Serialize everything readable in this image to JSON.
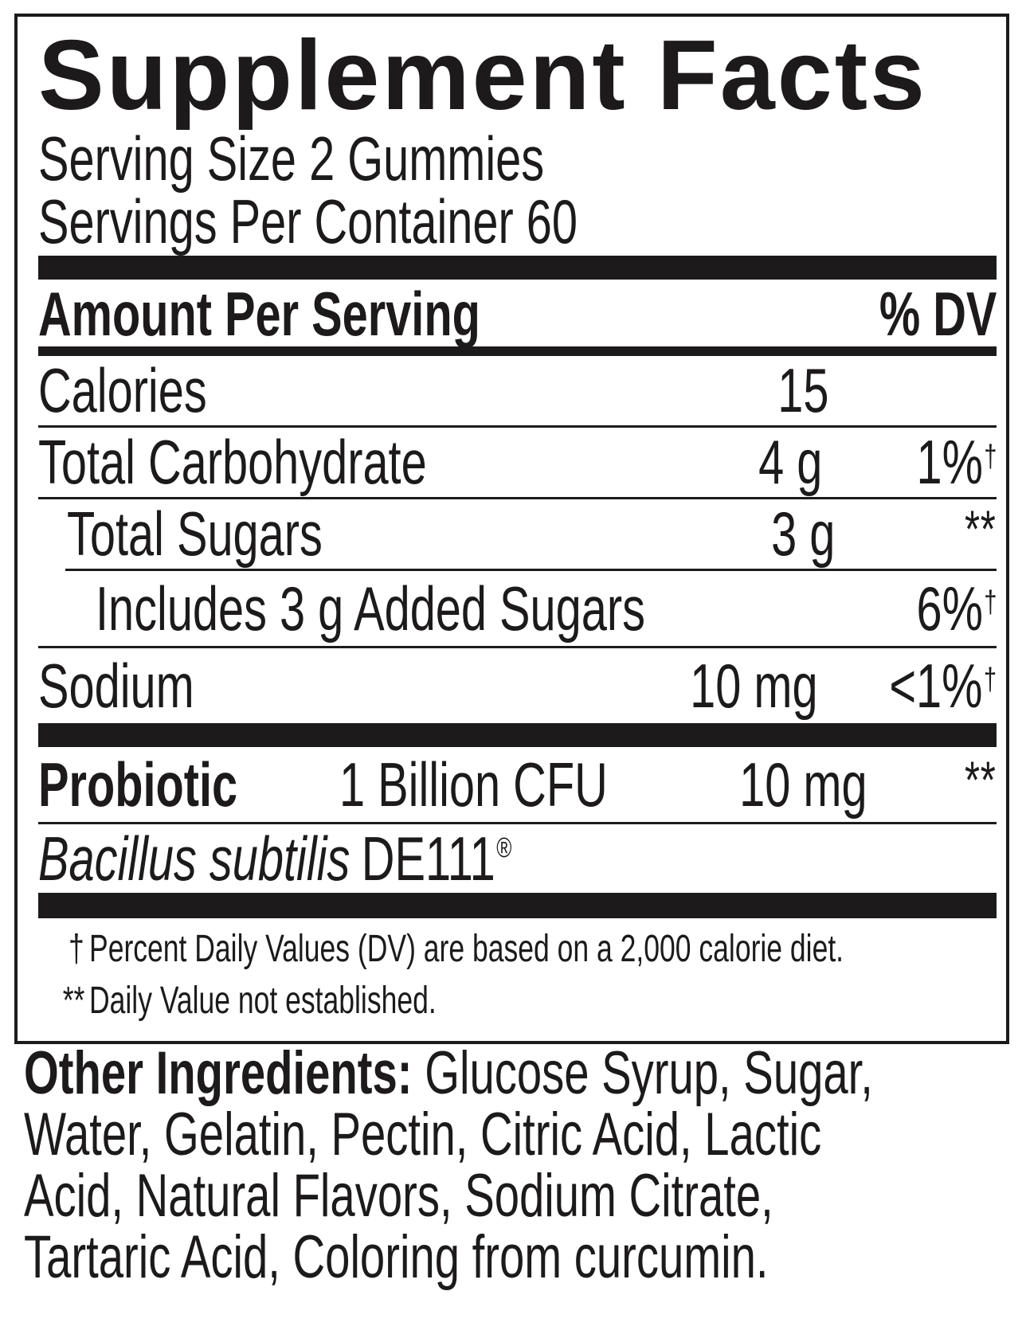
{
  "panel": {
    "title": "Supplement Facts",
    "serving_size": "Serving Size 2 Gummies",
    "servings_per_container": "Servings Per Container 60",
    "header": {
      "amount_label": "Amount Per Serving",
      "dv_label": "% DV"
    },
    "rows": [
      {
        "name": "Calories",
        "amount": "15",
        "dv": "",
        "dv_mark": ""
      },
      {
        "name": "Total Carbohydrate",
        "amount": "4 g",
        "dv": "1%",
        "dv_mark": "†"
      },
      {
        "name": "Total Sugars",
        "amount": "3 g",
        "dv": "",
        "dv_mark": "**"
      },
      {
        "name": "Includes 3 g Added Sugars",
        "amount": "",
        "dv": "6%",
        "dv_mark": "†"
      },
      {
        "name": "Sodium",
        "amount": "10 mg",
        "dv": "<1%",
        "dv_mark": "†"
      }
    ],
    "probiotic_row": {
      "name": "Probiotic",
      "detail": "1 Billion CFU",
      "amount": "10 mg",
      "dv": "",
      "dv_mark": "**"
    },
    "strain": {
      "italic": "Bacillus subtilis",
      "name": "DE111",
      "mark": "®"
    },
    "footnotes": [
      {
        "symbol": "†",
        "text": "Percent Daily Values (DV) are based on a 2,000 calorie diet."
      },
      {
        "symbol": "**",
        "text": "Daily Value not established."
      }
    ]
  },
  "other_ingredients": {
    "label": "Other Ingredients:",
    "lines": [
      "Glucose Syrup, Sugar,",
      "Water, Gelatin, Pectin, Citric Acid, Lactic",
      "Acid, Natural Flavors, Sodium Citrate,",
      "Tartaric Acid, Coloring from curcumin."
    ]
  },
  "colors": {
    "ink": "#1c1a1b",
    "background": "#ffffff"
  }
}
